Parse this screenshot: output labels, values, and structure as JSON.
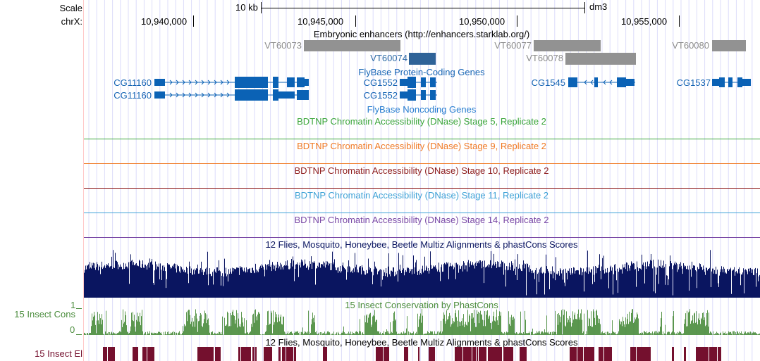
{
  "ruler": {
    "scale_label": "Scale",
    "chrom_label": "chrX:",
    "scale_bar_label": "10 kb",
    "assembly": "dm3",
    "ticks": [
      "10,940,000",
      "10,945,000",
      "10,950,000",
      "10,955,000"
    ]
  },
  "enhancers": {
    "title": "Embryonic enhancers (http://enhancers.starklab.org/)",
    "items": [
      "VT60073",
      "VT60077",
      "VT60080",
      "VT60074",
      "VT60078"
    ]
  },
  "protein_genes": {
    "title": "FlyBase Protein-Coding Genes",
    "items": [
      "CG11160",
      "CG11160",
      "CG1552",
      "CG1552",
      "CG1545",
      "CG1537"
    ]
  },
  "noncoding_genes": {
    "title": "FlyBase Noncoding Genes"
  },
  "dnase_tracks": [
    {
      "title": "BDTNP Chromatin Accessibility (DNase) Stage 5, Replicate 2",
      "color": "#3aa53a"
    },
    {
      "title": "BDTNP Chromatin Accessibility (DNase) Stage 9, Replicate 2",
      "color": "#f07a25"
    },
    {
      "title": "BDTNP Chromatin Accessibility (DNase) Stage 10, Replicate 2",
      "color": "#8e1c1c"
    },
    {
      "title": "BDTNP Chromatin Accessibility (DNase) Stage 11, Replicate 2",
      "color": "#3ea2d6"
    },
    {
      "title": "BDTNP Chromatin Accessibility (DNase) Stage 14, Replicate 2",
      "color": "#7b4aa6"
    }
  ],
  "multiz": {
    "title": "12 Flies, Mosquito, Honeybee, Beetle Multiz Alignments & phastCons Scores",
    "color": "#0a1560"
  },
  "cons": {
    "side_label": "15 Insect Cons",
    "title": "15 Insect Conservation by PhastCons",
    "ymax": "1",
    "ymin": "0",
    "color": "#4a8c3c"
  },
  "elements": {
    "title": "12 Flies, Mosquito, Honeybee, Beetle Multiz Alignments & phastCons Scores",
    "side_label": "15 Insect El",
    "color": "#74102e"
  }
}
